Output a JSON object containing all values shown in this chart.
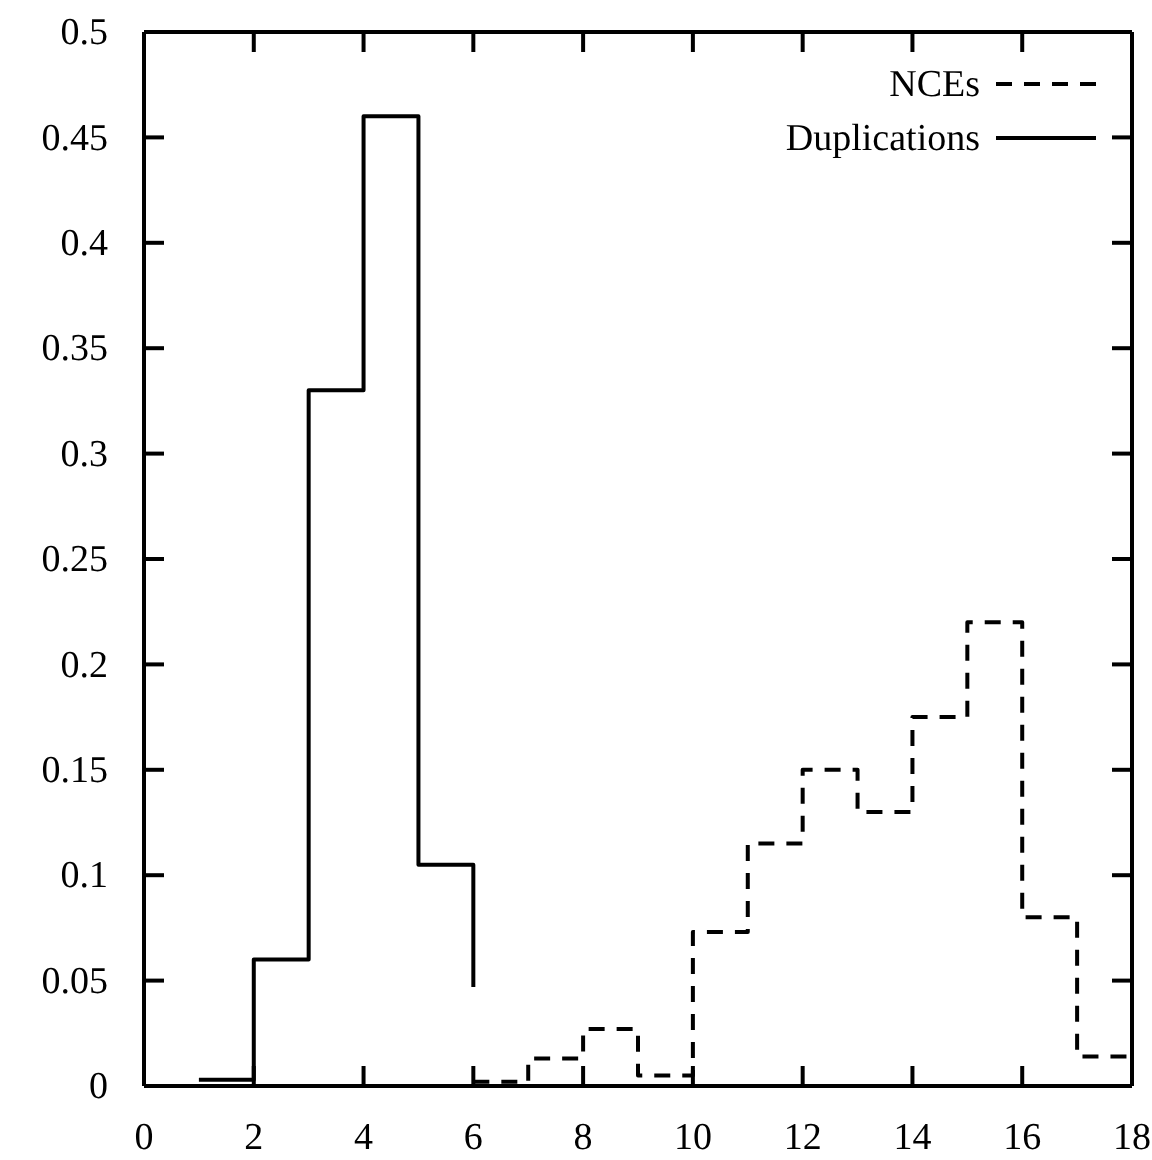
{
  "chart_data": {
    "type": "step",
    "series": [
      {
        "name": "NCEs",
        "color": "#000000",
        "line_style": "dashed",
        "x": [
          6,
          7,
          8,
          9,
          10,
          11,
          12,
          13,
          14,
          15,
          16,
          17,
          18
        ],
        "values": [
          0.002,
          0.013,
          0.027,
          0.005,
          0.073,
          0.115,
          0.15,
          0.13,
          0.175,
          0.22,
          0.08,
          0.014,
          0.014
        ]
      },
      {
        "name": "Duplications",
        "color": "#000000",
        "line_style": "solid",
        "x": [
          1,
          2,
          3,
          4,
          5,
          6
        ],
        "values": [
          0.003,
          0.06,
          0.33,
          0.46,
          0.105,
          0.047
        ]
      }
    ],
    "xlim": [
      0,
      18
    ],
    "xticks": [
      0,
      2,
      4,
      6,
      8,
      10,
      12,
      14,
      16,
      18
    ],
    "ylim": [
      0,
      0.5
    ],
    "yticks": [
      0,
      0.05,
      0.1,
      0.15,
      0.2,
      0.25,
      0.3,
      0.35,
      0.4,
      0.45,
      0.5
    ],
    "legend": "top right",
    "grid": false
  }
}
